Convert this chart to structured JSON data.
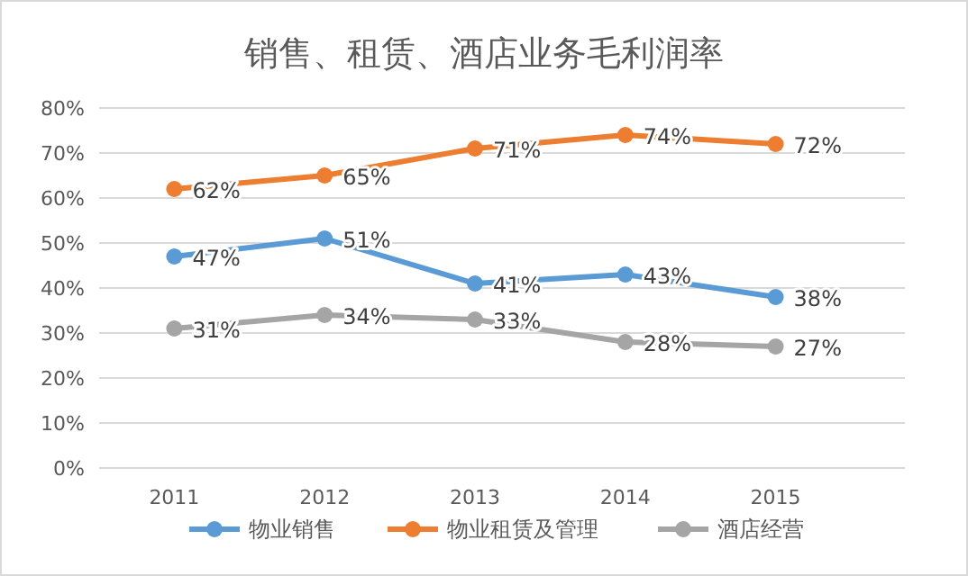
{
  "chart_data": {
    "type": "line",
    "title": "销售、租赁、酒店业务毛利润率",
    "categories": [
      "2011",
      "2012",
      "2013",
      "2014",
      "2015"
    ],
    "series": [
      {
        "name": "物业销售",
        "color": "#5b9bd5",
        "values": [
          47,
          51,
          41,
          43,
          38
        ],
        "value_labels": [
          "47%",
          "51%",
          "41%",
          "43%",
          "38%"
        ]
      },
      {
        "name": "物业租赁及管理",
        "color": "#ed7d31",
        "values": [
          62,
          65,
          71,
          74,
          72
        ],
        "value_labels": [
          "62%",
          "65%",
          "71%",
          "74%",
          "72%"
        ]
      },
      {
        "name": "酒店经营",
        "color": "#a5a5a5",
        "values": [
          31,
          34,
          33,
          28,
          27
        ],
        "value_labels": [
          "31%",
          "34%",
          "33%",
          "28%",
          "27%"
        ]
      }
    ],
    "ylim": [
      0,
      80
    ],
    "yticks": [
      {
        "value": 0,
        "label": "0%"
      },
      {
        "value": 10,
        "label": "10%"
      },
      {
        "value": 20,
        "label": "20%"
      },
      {
        "value": 30,
        "label": "30%"
      },
      {
        "value": 40,
        "label": "40%"
      },
      {
        "value": 50,
        "label": "50%"
      },
      {
        "value": 60,
        "label": "60%"
      },
      {
        "value": 70,
        "label": "70%"
      },
      {
        "value": 80,
        "label": "80%"
      }
    ],
    "grid": "y",
    "legend": "bottom",
    "marker": "circle",
    "line_style": "solid"
  }
}
